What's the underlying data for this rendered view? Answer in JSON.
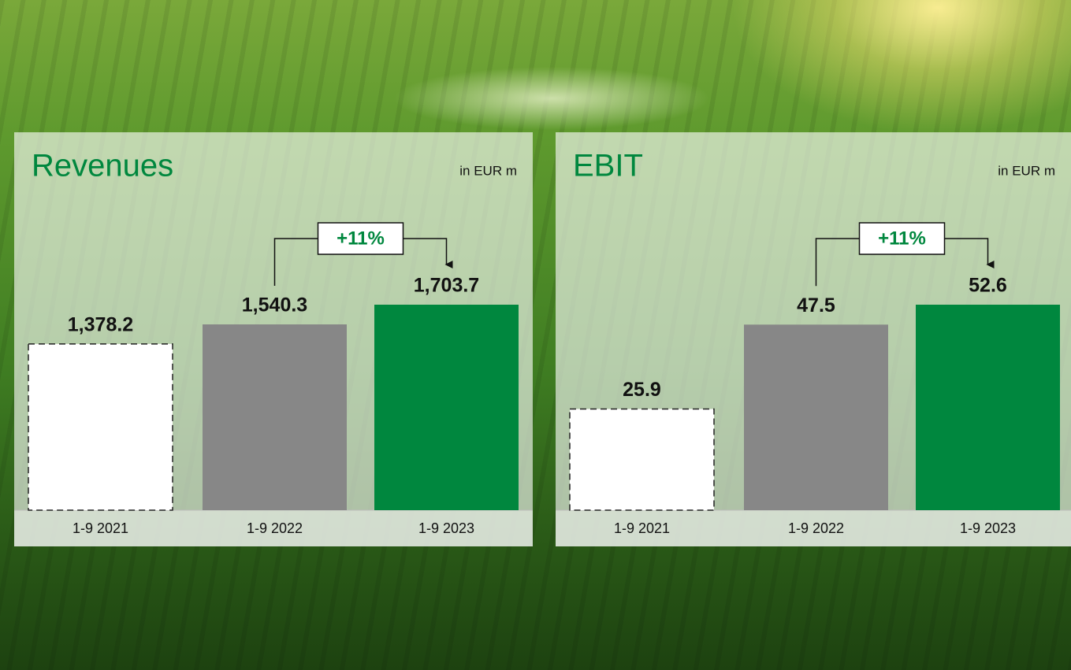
{
  "chart_data": [
    {
      "type": "bar",
      "title": "Revenues",
      "subtitle": "in EUR m",
      "categories": [
        "1-9 2021",
        "1-9 2022",
        "1-9 2023"
      ],
      "values": [
        1378.2,
        1540.3,
        1703.7
      ],
      "value_labels": [
        "1,378.2",
        "1,540.3",
        "1,703.7"
      ],
      "colors": [
        "#ffffff",
        "#878787",
        "#00873e"
      ],
      "dashed": [
        true,
        false,
        false
      ],
      "annotation": "+11%"
    },
    {
      "type": "bar",
      "title": "EBIT",
      "subtitle": "in EUR m",
      "categories": [
        "1-9 2021",
        "1-9 2022",
        "1-9 2023"
      ],
      "values": [
        25.9,
        47.5,
        52.6
      ],
      "colors": [
        "#ffffff",
        "#878787",
        "#00873e"
      ],
      "dashed": [
        true,
        false,
        false
      ],
      "annotation": "+11%"
    }
  ]
}
